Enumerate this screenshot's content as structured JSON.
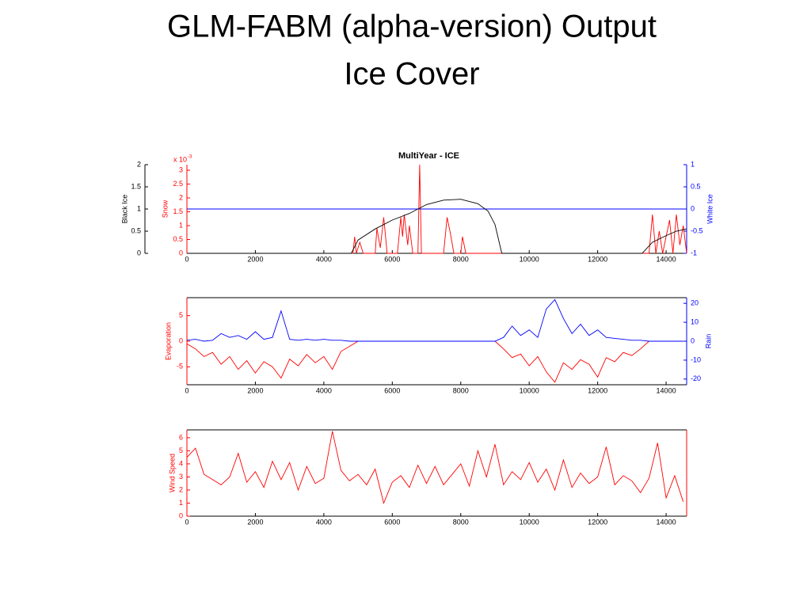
{
  "slide": {
    "title_lines": [
      "GLM-FABM (alpha-version) Output",
      "Ice Cover"
    ]
  },
  "chart_data": [
    {
      "type": "line",
      "title": "MultiYear - ICE",
      "xlim": [
        0,
        14600
      ],
      "xticks": [
        0,
        2000,
        4000,
        6000,
        8000,
        10000,
        12000,
        14000
      ],
      "ylabel": "Black Ice",
      "ycolor": "#000000",
      "ylim": [
        0,
        2
      ],
      "yticks": [
        0,
        0.5,
        1,
        1.5,
        2
      ],
      "y2label": "White Ice",
      "y2color": "#0000ff",
      "y2lim": [
        -1,
        1
      ],
      "y2ticks": [
        -1,
        -0.5,
        0,
        0.5,
        1
      ],
      "y3label": "Snow",
      "y3color": "#ff0000",
      "y3lim": [
        0,
        3.2
      ],
      "y3ticks": [
        0,
        0.5,
        1,
        1.5,
        2,
        2.5,
        3
      ],
      "y3multiplier": {
        "base": "x 10",
        "exponent": "-3"
      },
      "series": [
        {
          "name": "Snow",
          "color": "#ff0000",
          "axis": "y3",
          "x": [
            0,
            4850,
            4900,
            4950,
            5050,
            5150,
            5500,
            5550,
            5650,
            5750,
            5850,
            6150,
            6250,
            6300,
            6350,
            6450,
            6500,
            6600,
            6750,
            6800,
            6850,
            7500,
            7600,
            7700,
            7800,
            8000,
            8050,
            8150,
            13500,
            13600,
            13700,
            13800,
            13900,
            14100,
            14200,
            14300,
            14400,
            14500,
            14600
          ],
          "values": [
            0,
            0,
            0.6,
            0,
            0.4,
            0,
            0,
            0.9,
            0.2,
            1.3,
            0,
            0,
            1.3,
            0.6,
            1.4,
            0.3,
            1.0,
            0,
            0,
            3.2,
            0,
            0,
            1.3,
            0.7,
            0,
            0,
            0.6,
            0,
            0,
            1.4,
            0,
            0.8,
            0,
            1.2,
            0,
            1.4,
            0.3,
            1.0,
            0
          ]
        },
        {
          "name": "White Ice",
          "color": "#0000ff",
          "axis": "y2",
          "x": [
            0,
            14600
          ],
          "values": [
            0,
            0
          ]
        },
        {
          "name": "Black Ice",
          "color": "#000000",
          "x": [
            0,
            4800,
            5000,
            5500,
            6000,
            6500,
            7000,
            7500,
            8000,
            8500,
            8800,
            9000,
            9200,
            13300,
            13600,
            14000,
            14300,
            14600
          ],
          "values": [
            0,
            0,
            0.3,
            0.55,
            0.75,
            0.9,
            1.1,
            1.2,
            1.22,
            1.12,
            0.95,
            0.65,
            0,
            0,
            0.25,
            0.4,
            0.5,
            0.55
          ]
        }
      ]
    },
    {
      "type": "line",
      "xlim": [
        0,
        14600
      ],
      "xticks": [
        0,
        2000,
        4000,
        6000,
        8000,
        10000,
        12000,
        14000
      ],
      "ylabel": "Evaporation",
      "ycolor": "#ff0000",
      "ylim": [
        -8.5,
        8.5
      ],
      "yticks": [
        -5,
        0,
        5
      ],
      "y2label": "Rain",
      "y2color": "#0000ff",
      "y2lim": [
        -23,
        23
      ],
      "y2ticks": [
        -20,
        -10,
        0,
        10,
        20
      ],
      "x": [
        0,
        250,
        500,
        750,
        1000,
        1250,
        1500,
        1750,
        2000,
        2250,
        2500,
        2750,
        3000,
        3250,
        3500,
        3750,
        4000,
        4250,
        4500,
        4750,
        5000,
        5250,
        5500,
        5750,
        6000,
        6250,
        6500,
        6750,
        7000,
        7250,
        7500,
        7750,
        8000,
        8250,
        8500,
        8750,
        9000,
        9250,
        9500,
        9750,
        10000,
        10250,
        10500,
        10750,
        11000,
        11250,
        11500,
        11750,
        12000,
        12250,
        12500,
        12750,
        13000,
        13250,
        13500,
        13750,
        14000,
        14250,
        14500
      ],
      "series": [
        {
          "name": "Evaporation",
          "color": "#ff0000",
          "values": [
            -0.5,
            -1.5,
            -3.0,
            -2.2,
            -4.5,
            -3.0,
            -5.5,
            -3.8,
            -6.2,
            -4.0,
            -5.0,
            -7.2,
            -3.5,
            -4.8,
            -2.6,
            -4.2,
            -3.0,
            -5.5,
            -2.0,
            -1.0,
            0,
            0,
            0,
            0,
            0,
            0,
            0,
            0,
            0,
            0,
            0,
            0,
            0,
            0,
            0,
            0,
            0,
            -1.5,
            -3.2,
            -2.5,
            -4.8,
            -3.0,
            -6.0,
            -8.0,
            -4.2,
            -5.5,
            -3.6,
            -4.5,
            -7.0,
            -3.2,
            -4.0,
            -2.2,
            -2.8,
            -1.5,
            0,
            0,
            0,
            0,
            0
          ]
        },
        {
          "name": "Rain",
          "color": "#0000ff",
          "axis": "y2",
          "values": [
            0.5,
            1,
            0,
            0.5,
            4,
            2,
            3,
            1,
            5,
            1,
            2,
            16,
            1,
            0.5,
            1,
            0.5,
            1,
            0.5,
            0.5,
            0,
            0,
            0,
            0,
            0,
            0,
            0,
            0,
            0,
            0,
            0,
            0,
            0,
            0,
            0,
            0,
            0,
            0,
            2,
            8,
            3,
            6,
            2,
            17,
            22,
            12,
            4,
            9,
            3,
            6,
            2,
            1.5,
            1,
            0.5,
            0.5,
            0,
            0,
            0,
            0,
            0
          ]
        }
      ]
    },
    {
      "type": "line",
      "xlim": [
        0,
        14600
      ],
      "xticks": [
        0,
        2000,
        4000,
        6000,
        8000,
        10000,
        12000,
        14000
      ],
      "ylabel": "Wind Speed",
      "ycolor": "#ff0000",
      "ylim": [
        0,
        6.6
      ],
      "yticks": [
        0,
        1,
        2,
        3,
        4,
        5,
        6
      ],
      "x": [
        0,
        250,
        500,
        750,
        1000,
        1250,
        1500,
        1750,
        2000,
        2250,
        2500,
        2750,
        3000,
        3250,
        3500,
        3750,
        4000,
        4250,
        4500,
        4750,
        5000,
        5250,
        5500,
        5750,
        6000,
        6250,
        6500,
        6750,
        7000,
        7250,
        7500,
        7750,
        8000,
        8250,
        8500,
        8750,
        9000,
        9250,
        9500,
        9750,
        10000,
        10250,
        10500,
        10750,
        11000,
        11250,
        11500,
        11750,
        12000,
        12250,
        12500,
        12750,
        13000,
        13250,
        13500,
        13750,
        14000,
        14250,
        14500
      ],
      "series": [
        {
          "name": "Wind Speed",
          "color": "#ff0000",
          "values": [
            4.5,
            5.2,
            3.2,
            2.8,
            2.4,
            3.0,
            4.8,
            2.6,
            3.4,
            2.2,
            4.2,
            2.8,
            4.1,
            2.0,
            3.8,
            2.5,
            2.9,
            6.5,
            3.5,
            2.7,
            3.2,
            2.4,
            3.6,
            1.0,
            2.6,
            3.1,
            2.2,
            3.9,
            2.5,
            3.8,
            2.4,
            3.2,
            4.0,
            2.3,
            5.0,
            3.0,
            5.5,
            2.4,
            3.4,
            2.8,
            4.1,
            2.6,
            3.6,
            2.0,
            4.3,
            2.2,
            3.3,
            2.5,
            3.0,
            5.3,
            2.4,
            3.1,
            2.7,
            1.8,
            2.9,
            5.6,
            1.4,
            3.1,
            1.1
          ]
        }
      ]
    }
  ]
}
